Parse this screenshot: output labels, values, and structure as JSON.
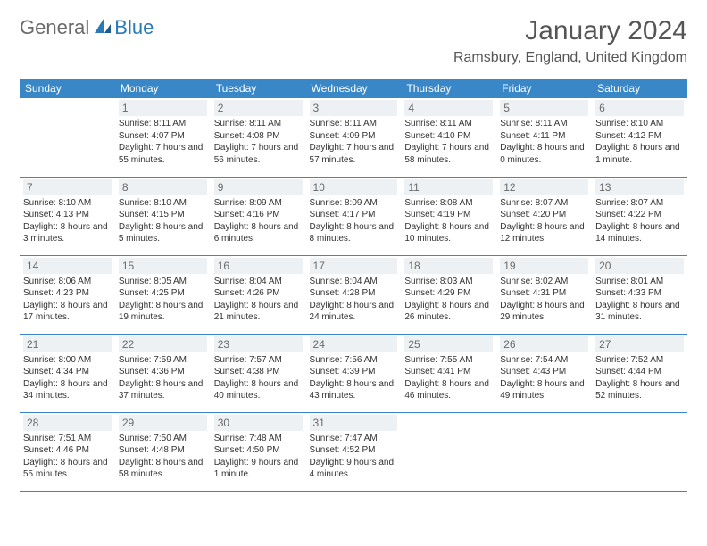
{
  "logo": {
    "part1": "General",
    "part2": "Blue"
  },
  "title": "January 2024",
  "location": "Ramsbury, England, United Kingdom",
  "colors": {
    "header_bg": "#3a87c7",
    "header_text": "#ffffff",
    "daynum_bg": "#eef1f3",
    "daynum_text": "#6a6a6a",
    "border": "#3a87c7",
    "logo_gray": "#6b6b6b",
    "logo_blue": "#2a7ab8"
  },
  "dayHeaders": [
    "Sunday",
    "Monday",
    "Tuesday",
    "Wednesday",
    "Thursday",
    "Friday",
    "Saturday"
  ],
  "weeks": [
    [
      null,
      {
        "n": "1",
        "sr": "Sunrise: 8:11 AM",
        "ss": "Sunset: 4:07 PM",
        "dl": "Daylight: 7 hours and 55 minutes."
      },
      {
        "n": "2",
        "sr": "Sunrise: 8:11 AM",
        "ss": "Sunset: 4:08 PM",
        "dl": "Daylight: 7 hours and 56 minutes."
      },
      {
        "n": "3",
        "sr": "Sunrise: 8:11 AM",
        "ss": "Sunset: 4:09 PM",
        "dl": "Daylight: 7 hours and 57 minutes."
      },
      {
        "n": "4",
        "sr": "Sunrise: 8:11 AM",
        "ss": "Sunset: 4:10 PM",
        "dl": "Daylight: 7 hours and 58 minutes."
      },
      {
        "n": "5",
        "sr": "Sunrise: 8:11 AM",
        "ss": "Sunset: 4:11 PM",
        "dl": "Daylight: 8 hours and 0 minutes."
      },
      {
        "n": "6",
        "sr": "Sunrise: 8:10 AM",
        "ss": "Sunset: 4:12 PM",
        "dl": "Daylight: 8 hours and 1 minute."
      }
    ],
    [
      {
        "n": "7",
        "sr": "Sunrise: 8:10 AM",
        "ss": "Sunset: 4:13 PM",
        "dl": "Daylight: 8 hours and 3 minutes."
      },
      {
        "n": "8",
        "sr": "Sunrise: 8:10 AM",
        "ss": "Sunset: 4:15 PM",
        "dl": "Daylight: 8 hours and 5 minutes."
      },
      {
        "n": "9",
        "sr": "Sunrise: 8:09 AM",
        "ss": "Sunset: 4:16 PM",
        "dl": "Daylight: 8 hours and 6 minutes."
      },
      {
        "n": "10",
        "sr": "Sunrise: 8:09 AM",
        "ss": "Sunset: 4:17 PM",
        "dl": "Daylight: 8 hours and 8 minutes."
      },
      {
        "n": "11",
        "sr": "Sunrise: 8:08 AM",
        "ss": "Sunset: 4:19 PM",
        "dl": "Daylight: 8 hours and 10 minutes."
      },
      {
        "n": "12",
        "sr": "Sunrise: 8:07 AM",
        "ss": "Sunset: 4:20 PM",
        "dl": "Daylight: 8 hours and 12 minutes."
      },
      {
        "n": "13",
        "sr": "Sunrise: 8:07 AM",
        "ss": "Sunset: 4:22 PM",
        "dl": "Daylight: 8 hours and 14 minutes."
      }
    ],
    [
      {
        "n": "14",
        "sr": "Sunrise: 8:06 AM",
        "ss": "Sunset: 4:23 PM",
        "dl": "Daylight: 8 hours and 17 minutes."
      },
      {
        "n": "15",
        "sr": "Sunrise: 8:05 AM",
        "ss": "Sunset: 4:25 PM",
        "dl": "Daylight: 8 hours and 19 minutes."
      },
      {
        "n": "16",
        "sr": "Sunrise: 8:04 AM",
        "ss": "Sunset: 4:26 PM",
        "dl": "Daylight: 8 hours and 21 minutes."
      },
      {
        "n": "17",
        "sr": "Sunrise: 8:04 AM",
        "ss": "Sunset: 4:28 PM",
        "dl": "Daylight: 8 hours and 24 minutes."
      },
      {
        "n": "18",
        "sr": "Sunrise: 8:03 AM",
        "ss": "Sunset: 4:29 PM",
        "dl": "Daylight: 8 hours and 26 minutes."
      },
      {
        "n": "19",
        "sr": "Sunrise: 8:02 AM",
        "ss": "Sunset: 4:31 PM",
        "dl": "Daylight: 8 hours and 29 minutes."
      },
      {
        "n": "20",
        "sr": "Sunrise: 8:01 AM",
        "ss": "Sunset: 4:33 PM",
        "dl": "Daylight: 8 hours and 31 minutes."
      }
    ],
    [
      {
        "n": "21",
        "sr": "Sunrise: 8:00 AM",
        "ss": "Sunset: 4:34 PM",
        "dl": "Daylight: 8 hours and 34 minutes."
      },
      {
        "n": "22",
        "sr": "Sunrise: 7:59 AM",
        "ss": "Sunset: 4:36 PM",
        "dl": "Daylight: 8 hours and 37 minutes."
      },
      {
        "n": "23",
        "sr": "Sunrise: 7:57 AM",
        "ss": "Sunset: 4:38 PM",
        "dl": "Daylight: 8 hours and 40 minutes."
      },
      {
        "n": "24",
        "sr": "Sunrise: 7:56 AM",
        "ss": "Sunset: 4:39 PM",
        "dl": "Daylight: 8 hours and 43 minutes."
      },
      {
        "n": "25",
        "sr": "Sunrise: 7:55 AM",
        "ss": "Sunset: 4:41 PM",
        "dl": "Daylight: 8 hours and 46 minutes."
      },
      {
        "n": "26",
        "sr": "Sunrise: 7:54 AM",
        "ss": "Sunset: 4:43 PM",
        "dl": "Daylight: 8 hours and 49 minutes."
      },
      {
        "n": "27",
        "sr": "Sunrise: 7:52 AM",
        "ss": "Sunset: 4:44 PM",
        "dl": "Daylight: 8 hours and 52 minutes."
      }
    ],
    [
      {
        "n": "28",
        "sr": "Sunrise: 7:51 AM",
        "ss": "Sunset: 4:46 PM",
        "dl": "Daylight: 8 hours and 55 minutes."
      },
      {
        "n": "29",
        "sr": "Sunrise: 7:50 AM",
        "ss": "Sunset: 4:48 PM",
        "dl": "Daylight: 8 hours and 58 minutes."
      },
      {
        "n": "30",
        "sr": "Sunrise: 7:48 AM",
        "ss": "Sunset: 4:50 PM",
        "dl": "Daylight: 9 hours and 1 minute."
      },
      {
        "n": "31",
        "sr": "Sunrise: 7:47 AM",
        "ss": "Sunset: 4:52 PM",
        "dl": "Daylight: 9 hours and 4 minutes."
      },
      null,
      null,
      null
    ]
  ]
}
